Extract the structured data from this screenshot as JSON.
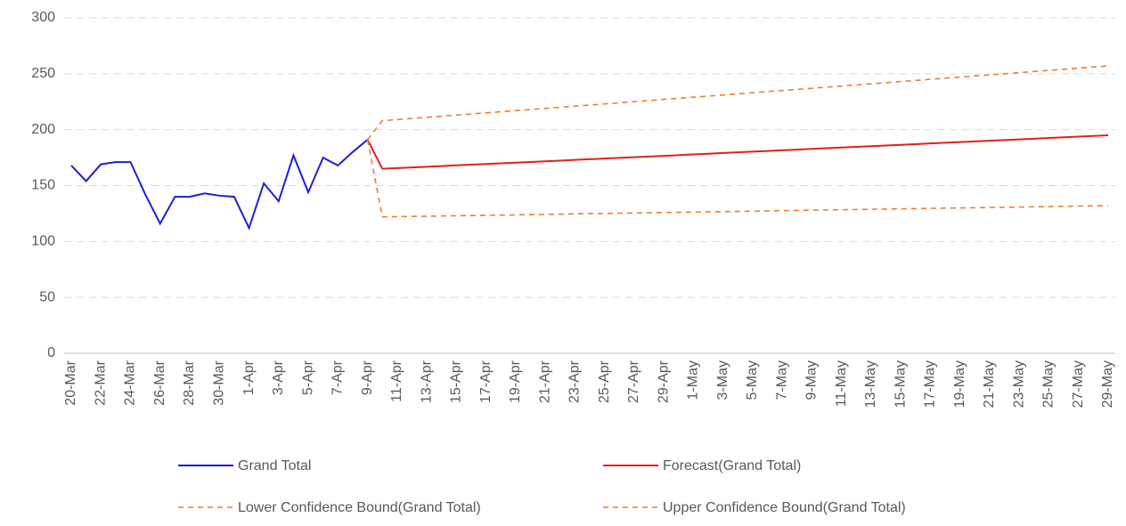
{
  "chart_data": {
    "type": "line",
    "categories": [
      "20-Mar",
      null,
      "22-Mar",
      null,
      "24-Mar",
      null,
      "26-Mar",
      null,
      "28-Mar",
      null,
      "30-Mar",
      null,
      "1-Apr",
      null,
      "3-Apr",
      null,
      "5-Apr",
      null,
      "7-Apr",
      null,
      "9-Apr",
      null,
      "11-Apr",
      null,
      "13-Apr",
      null,
      "15-Apr",
      null,
      "17-Apr",
      null,
      "19-Apr",
      null,
      "21-Apr",
      null,
      "23-Apr",
      null,
      "25-Apr",
      null,
      "27-Apr",
      null,
      "29-Apr",
      null,
      "1-May",
      null,
      "3-May",
      null,
      "5-May",
      null,
      "7-May",
      null,
      "9-May",
      null,
      "11-May",
      null,
      "13-May",
      null,
      "15-May",
      null,
      "17-May",
      null,
      "19-May",
      null,
      "21-May",
      null,
      "23-May",
      null,
      "25-May",
      null,
      "27-May",
      null,
      "29-May"
    ],
    "series": [
      {
        "name": "Grand Total",
        "color": "#1f1fd6",
        "dashed": false,
        "values": [
          168,
          154,
          169,
          171,
          171,
          142,
          116,
          140,
          140,
          143,
          141,
          140,
          112,
          152,
          136,
          177,
          144,
          175,
          168,
          180,
          191,
          null,
          null,
          null,
          null,
          null,
          null,
          null,
          null,
          null,
          null,
          null,
          null,
          null,
          null,
          null,
          null,
          null,
          null,
          null,
          null,
          null,
          null,
          null,
          null,
          null,
          null,
          null,
          null,
          null,
          null,
          null,
          null,
          null,
          null,
          null,
          null,
          null,
          null,
          null,
          null,
          null,
          null,
          null,
          null,
          null,
          null,
          null,
          null,
          null,
          null
        ]
      },
      {
        "name": "Forecast(Grand Total)",
        "color": "#e0201e",
        "dashed": false,
        "values": [
          null,
          null,
          null,
          null,
          null,
          null,
          null,
          null,
          null,
          null,
          null,
          null,
          null,
          null,
          null,
          null,
          null,
          null,
          null,
          null,
          191,
          165.0,
          165.6,
          166.2,
          166.8,
          167.4,
          168.1,
          168.7,
          169.3,
          169.9,
          170.5,
          171.1,
          171.7,
          172.3,
          173.0,
          173.6,
          174.2,
          174.8,
          175.4,
          176.0,
          176.6,
          177.2,
          177.9,
          178.5,
          179.1,
          179.7,
          180.3,
          180.9,
          181.5,
          182.1,
          182.8,
          183.4,
          184.0,
          184.6,
          185.2,
          185.8,
          186.4,
          187.0,
          187.7,
          188.3,
          188.9,
          189.5,
          190.1,
          190.7,
          191.3,
          191.9,
          192.6,
          193.2,
          193.8,
          194.4,
          195.0
        ]
      },
      {
        "name": "Lower Confidence Bound(Grand Total)",
        "color": "#ed7d31",
        "dashed": true,
        "values": [
          null,
          null,
          null,
          null,
          null,
          null,
          null,
          null,
          null,
          null,
          null,
          null,
          null,
          null,
          null,
          null,
          null,
          null,
          null,
          null,
          191,
          122.0,
          122.2,
          122.4,
          122.6,
          122.8,
          123.0,
          123.2,
          123.4,
          123.6,
          123.8,
          124.0,
          124.2,
          124.4,
          124.7,
          124.9,
          125.1,
          125.3,
          125.5,
          125.7,
          125.9,
          126.1,
          126.3,
          126.5,
          126.7,
          126.9,
          127.1,
          127.3,
          127.6,
          127.8,
          128.0,
          128.2,
          128.4,
          128.6,
          128.8,
          129.0,
          129.2,
          129.4,
          129.6,
          129.8,
          130.0,
          130.2,
          130.4,
          130.6,
          130.8,
          131.0,
          131.2,
          131.4,
          131.7,
          131.9,
          132.0
        ]
      },
      {
        "name": "Upper Confidence Bound(Grand Total)",
        "color": "#ed7d31",
        "dashed": true,
        "values": [
          null,
          null,
          null,
          null,
          null,
          null,
          null,
          null,
          null,
          null,
          null,
          null,
          null,
          null,
          null,
          null,
          null,
          null,
          null,
          null,
          191,
          208,
          209,
          210,
          211,
          212,
          213,
          214,
          215,
          216,
          217,
          218,
          219,
          220,
          221,
          222,
          223,
          224,
          225,
          226,
          227,
          228,
          229,
          230,
          231,
          232,
          233,
          234,
          235,
          236,
          237,
          238,
          239,
          240,
          241,
          242,
          243,
          244,
          245,
          246,
          247,
          248,
          249,
          250,
          251,
          252,
          253,
          254,
          255,
          256,
          257
        ]
      }
    ],
    "ylim": [
      0,
      300
    ],
    "yticks": [
      0,
      50,
      100,
      150,
      200,
      250,
      300
    ],
    "grid": true,
    "legend": "bottom"
  }
}
